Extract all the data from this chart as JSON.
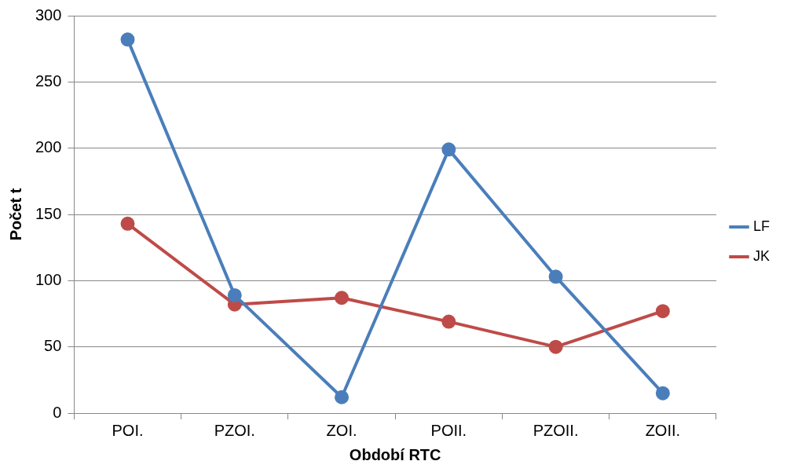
{
  "chart_data": {
    "type": "line",
    "xlabel": "Období RTC",
    "ylabel": "Počet t",
    "categories": [
      "POI.",
      "PZOI.",
      "ZOI.",
      "POII.",
      "PZOII.",
      "ZOII."
    ],
    "series": [
      {
        "name": "LF",
        "color": "#4a7ebb",
        "values": [
          282,
          89,
          12,
          199,
          103,
          15
        ]
      },
      {
        "name": "JK",
        "color": "#be4b48",
        "values": [
          143,
          82,
          87,
          69,
          50,
          77
        ]
      }
    ],
    "ylim": [
      0,
      300
    ],
    "yticks": [
      0,
      50,
      100,
      150,
      200,
      250,
      300
    ],
    "grid": "y",
    "legend": "right",
    "marker": "circle",
    "line_style": "solid"
  }
}
